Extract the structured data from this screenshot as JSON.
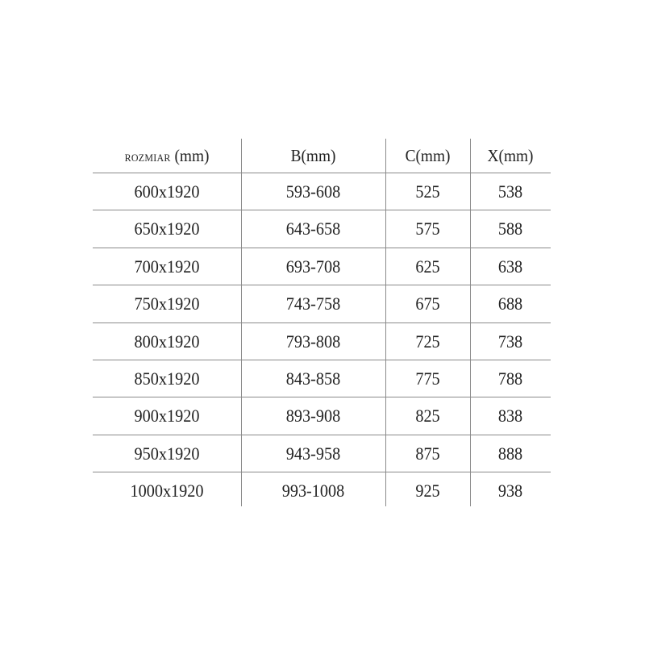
{
  "table": {
    "headers": [
      {
        "prefix": "ROZMIAR",
        "unit": "(mm)"
      },
      {
        "prefix": "B",
        "unit": "(mm)"
      },
      {
        "prefix": "C",
        "unit": "(mm)"
      },
      {
        "prefix": "X",
        "unit": "(mm)"
      }
    ],
    "rows": [
      [
        "600x1920",
        "593-608",
        "525",
        "538"
      ],
      [
        "650x1920",
        "643-658",
        "575",
        "588"
      ],
      [
        "700x1920",
        "693-708",
        "625",
        "638"
      ],
      [
        "750x1920",
        "743-758",
        "675",
        "688"
      ],
      [
        "800x1920",
        "793-808",
        "725",
        "738"
      ],
      [
        "850x1920",
        "843-858",
        "775",
        "788"
      ],
      [
        "900x1920",
        "893-908",
        "825",
        "838"
      ],
      [
        "950x1920",
        "943-958",
        "875",
        "888"
      ],
      [
        "1000x1920",
        "993-1008",
        "925",
        "938"
      ]
    ],
    "line_color": "#8a8a8a"
  }
}
